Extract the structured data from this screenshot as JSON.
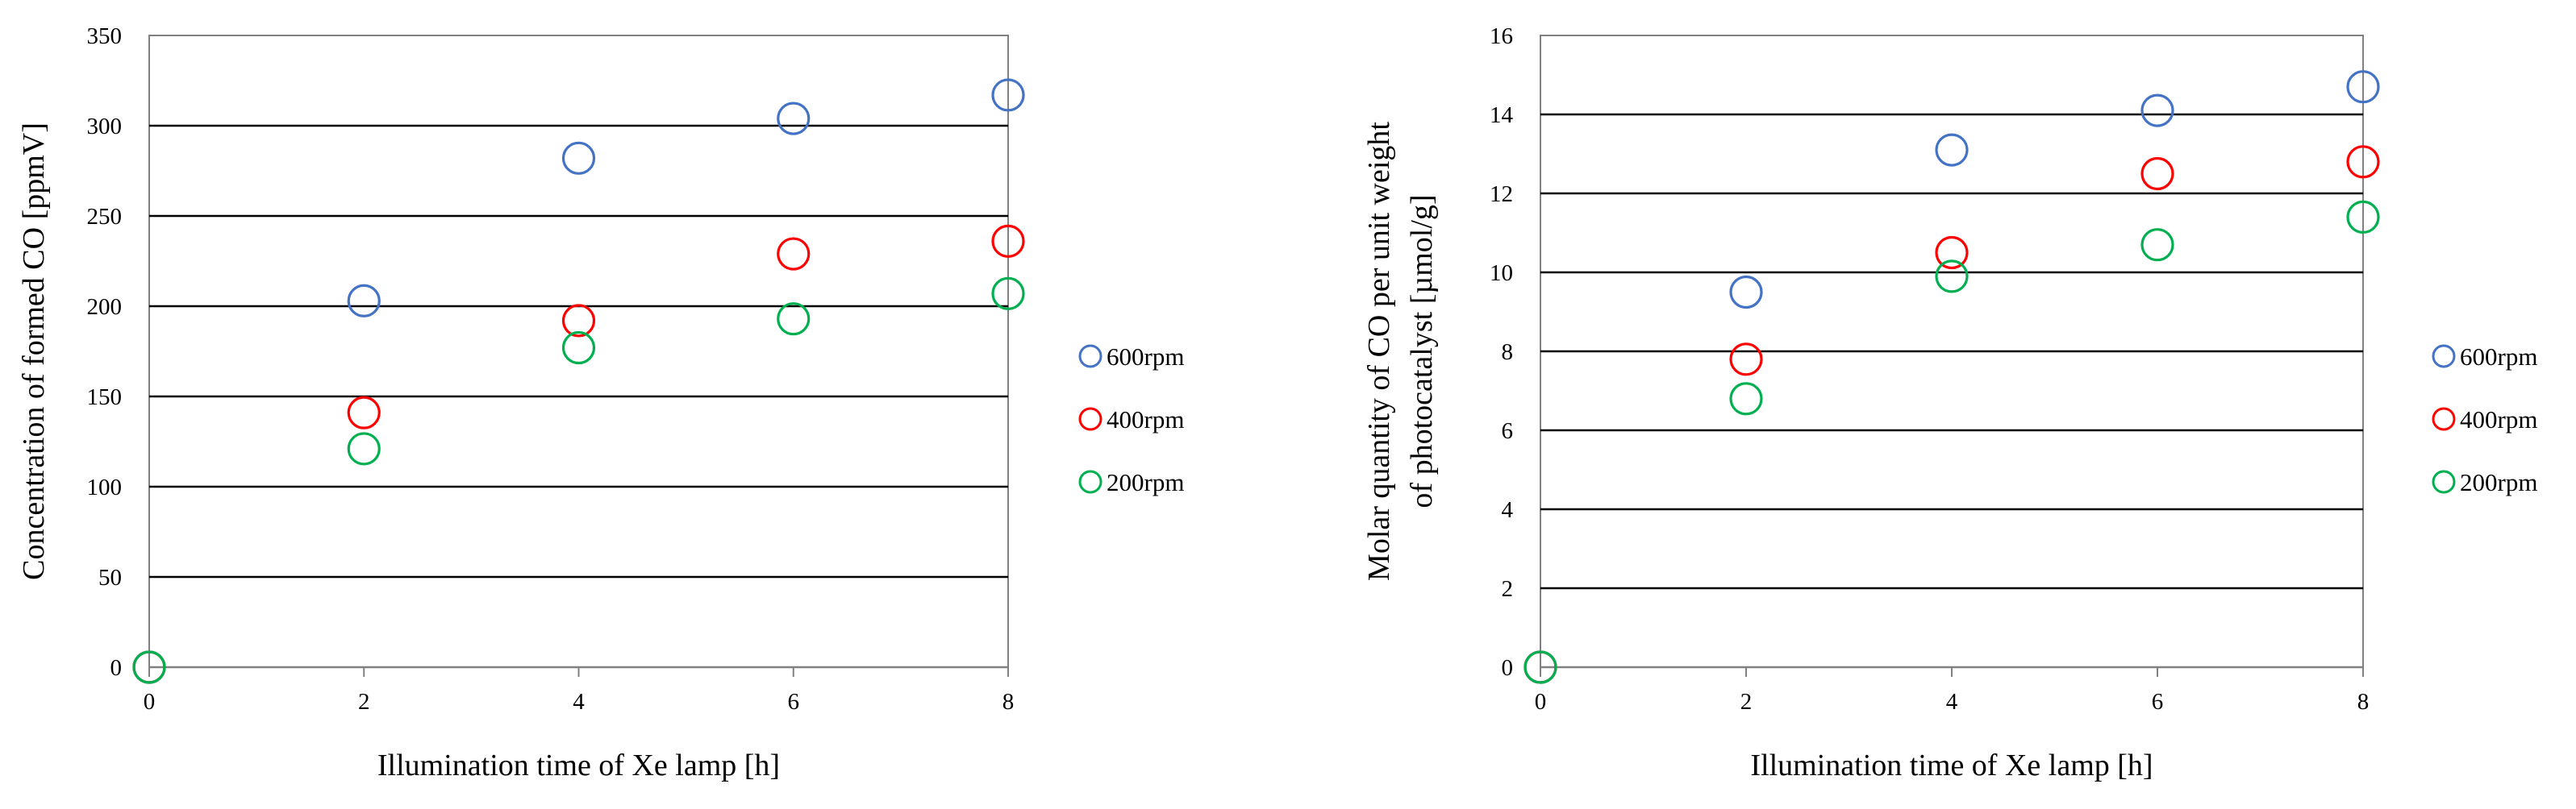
{
  "chart_data": [
    {
      "type": "scatter",
      "title": "",
      "xlabel": "Illumination  time  of Xe lamp  [h]",
      "ylabel_lines": [
        "Concentration  of formed  CO  [ppmV]"
      ],
      "xlim": [
        0,
        8
      ],
      "ylim": [
        0,
        350
      ],
      "xticks": [
        0,
        2,
        4,
        6,
        8
      ],
      "yticks": [
        0,
        50,
        100,
        150,
        200,
        250,
        300,
        350
      ],
      "grid": "horizontal",
      "legend_position": "right",
      "series": [
        {
          "name": "600rpm",
          "color": "#4472C4",
          "x": [
            0,
            2,
            4,
            6,
            8
          ],
          "y": [
            0,
            203,
            282,
            304,
            317
          ]
        },
        {
          "name": "400rpm",
          "color": "#FF0000",
          "x": [
            0,
            2,
            4,
            6,
            8
          ],
          "y": [
            0,
            141,
            192,
            229,
            236
          ]
        },
        {
          "name": "200rpm",
          "color": "#00B050",
          "x": [
            0,
            2,
            4,
            6,
            8
          ],
          "y": [
            0,
            121,
            177,
            193,
            207
          ]
        }
      ]
    },
    {
      "type": "scatter",
      "title": "",
      "xlabel": "Illumination  time  of Xe lamp  [h]",
      "ylabel_lines": [
        "Molar  quantity  of CO per unit  weight",
        "of photocatalyst  [µmol/g]"
      ],
      "xlim": [
        0,
        8
      ],
      "ylim": [
        0,
        16
      ],
      "xticks": [
        0,
        2,
        4,
        6,
        8
      ],
      "yticks": [
        0,
        2,
        4,
        6,
        8,
        10,
        12,
        14,
        16
      ],
      "grid": "horizontal",
      "legend_position": "right",
      "series": [
        {
          "name": "600rpm",
          "color": "#4472C4",
          "x": [
            0,
            2,
            4,
            6,
            8
          ],
          "y": [
            0,
            9.5,
            13.1,
            14.1,
            14.7
          ]
        },
        {
          "name": "400rpm",
          "color": "#FF0000",
          "x": [
            0,
            2,
            4,
            6,
            8
          ],
          "y": [
            0,
            7.8,
            10.5,
            12.5,
            12.8
          ]
        },
        {
          "name": "200rpm",
          "color": "#00B050",
          "x": [
            0,
            2,
            4,
            6,
            8
          ],
          "y": [
            0,
            6.8,
            9.9,
            10.7,
            11.4
          ]
        }
      ]
    }
  ]
}
